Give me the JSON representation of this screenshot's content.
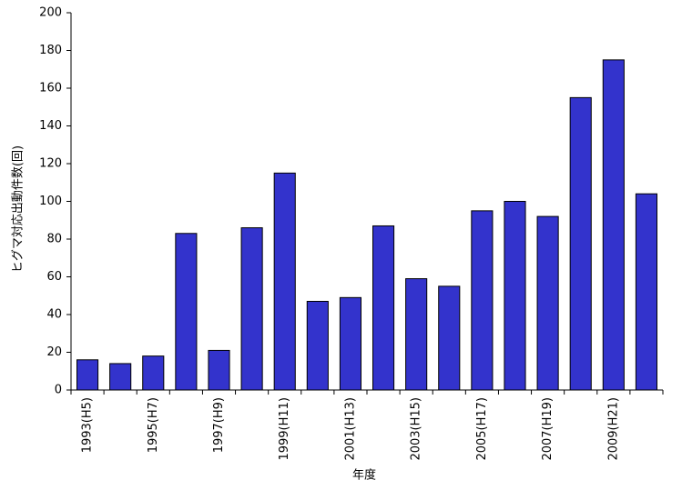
{
  "chart_data": {
    "type": "bar",
    "x_label": "年度",
    "y_label": "ヒグマ対応出動件数(回)",
    "categories": [
      "1993(H5)",
      null,
      "1995(H7)",
      null,
      "1997(H9)",
      null,
      "1999(H11)",
      null,
      "2001(H13)",
      null,
      "2003(H15)",
      null,
      "2005(H17)",
      null,
      "2007(H19)",
      null,
      "2009(H21)",
      null
    ],
    "values": [
      16,
      14,
      18,
      83,
      21,
      86,
      115,
      47,
      49,
      87,
      59,
      55,
      95,
      100,
      92,
      155,
      175,
      104
    ],
    "color": "#3333cc",
    "ylim": [
      0,
      200
    ],
    "yticks": [
      0,
      20,
      40,
      60,
      80,
      100,
      120,
      140,
      160,
      180,
      200
    ]
  }
}
